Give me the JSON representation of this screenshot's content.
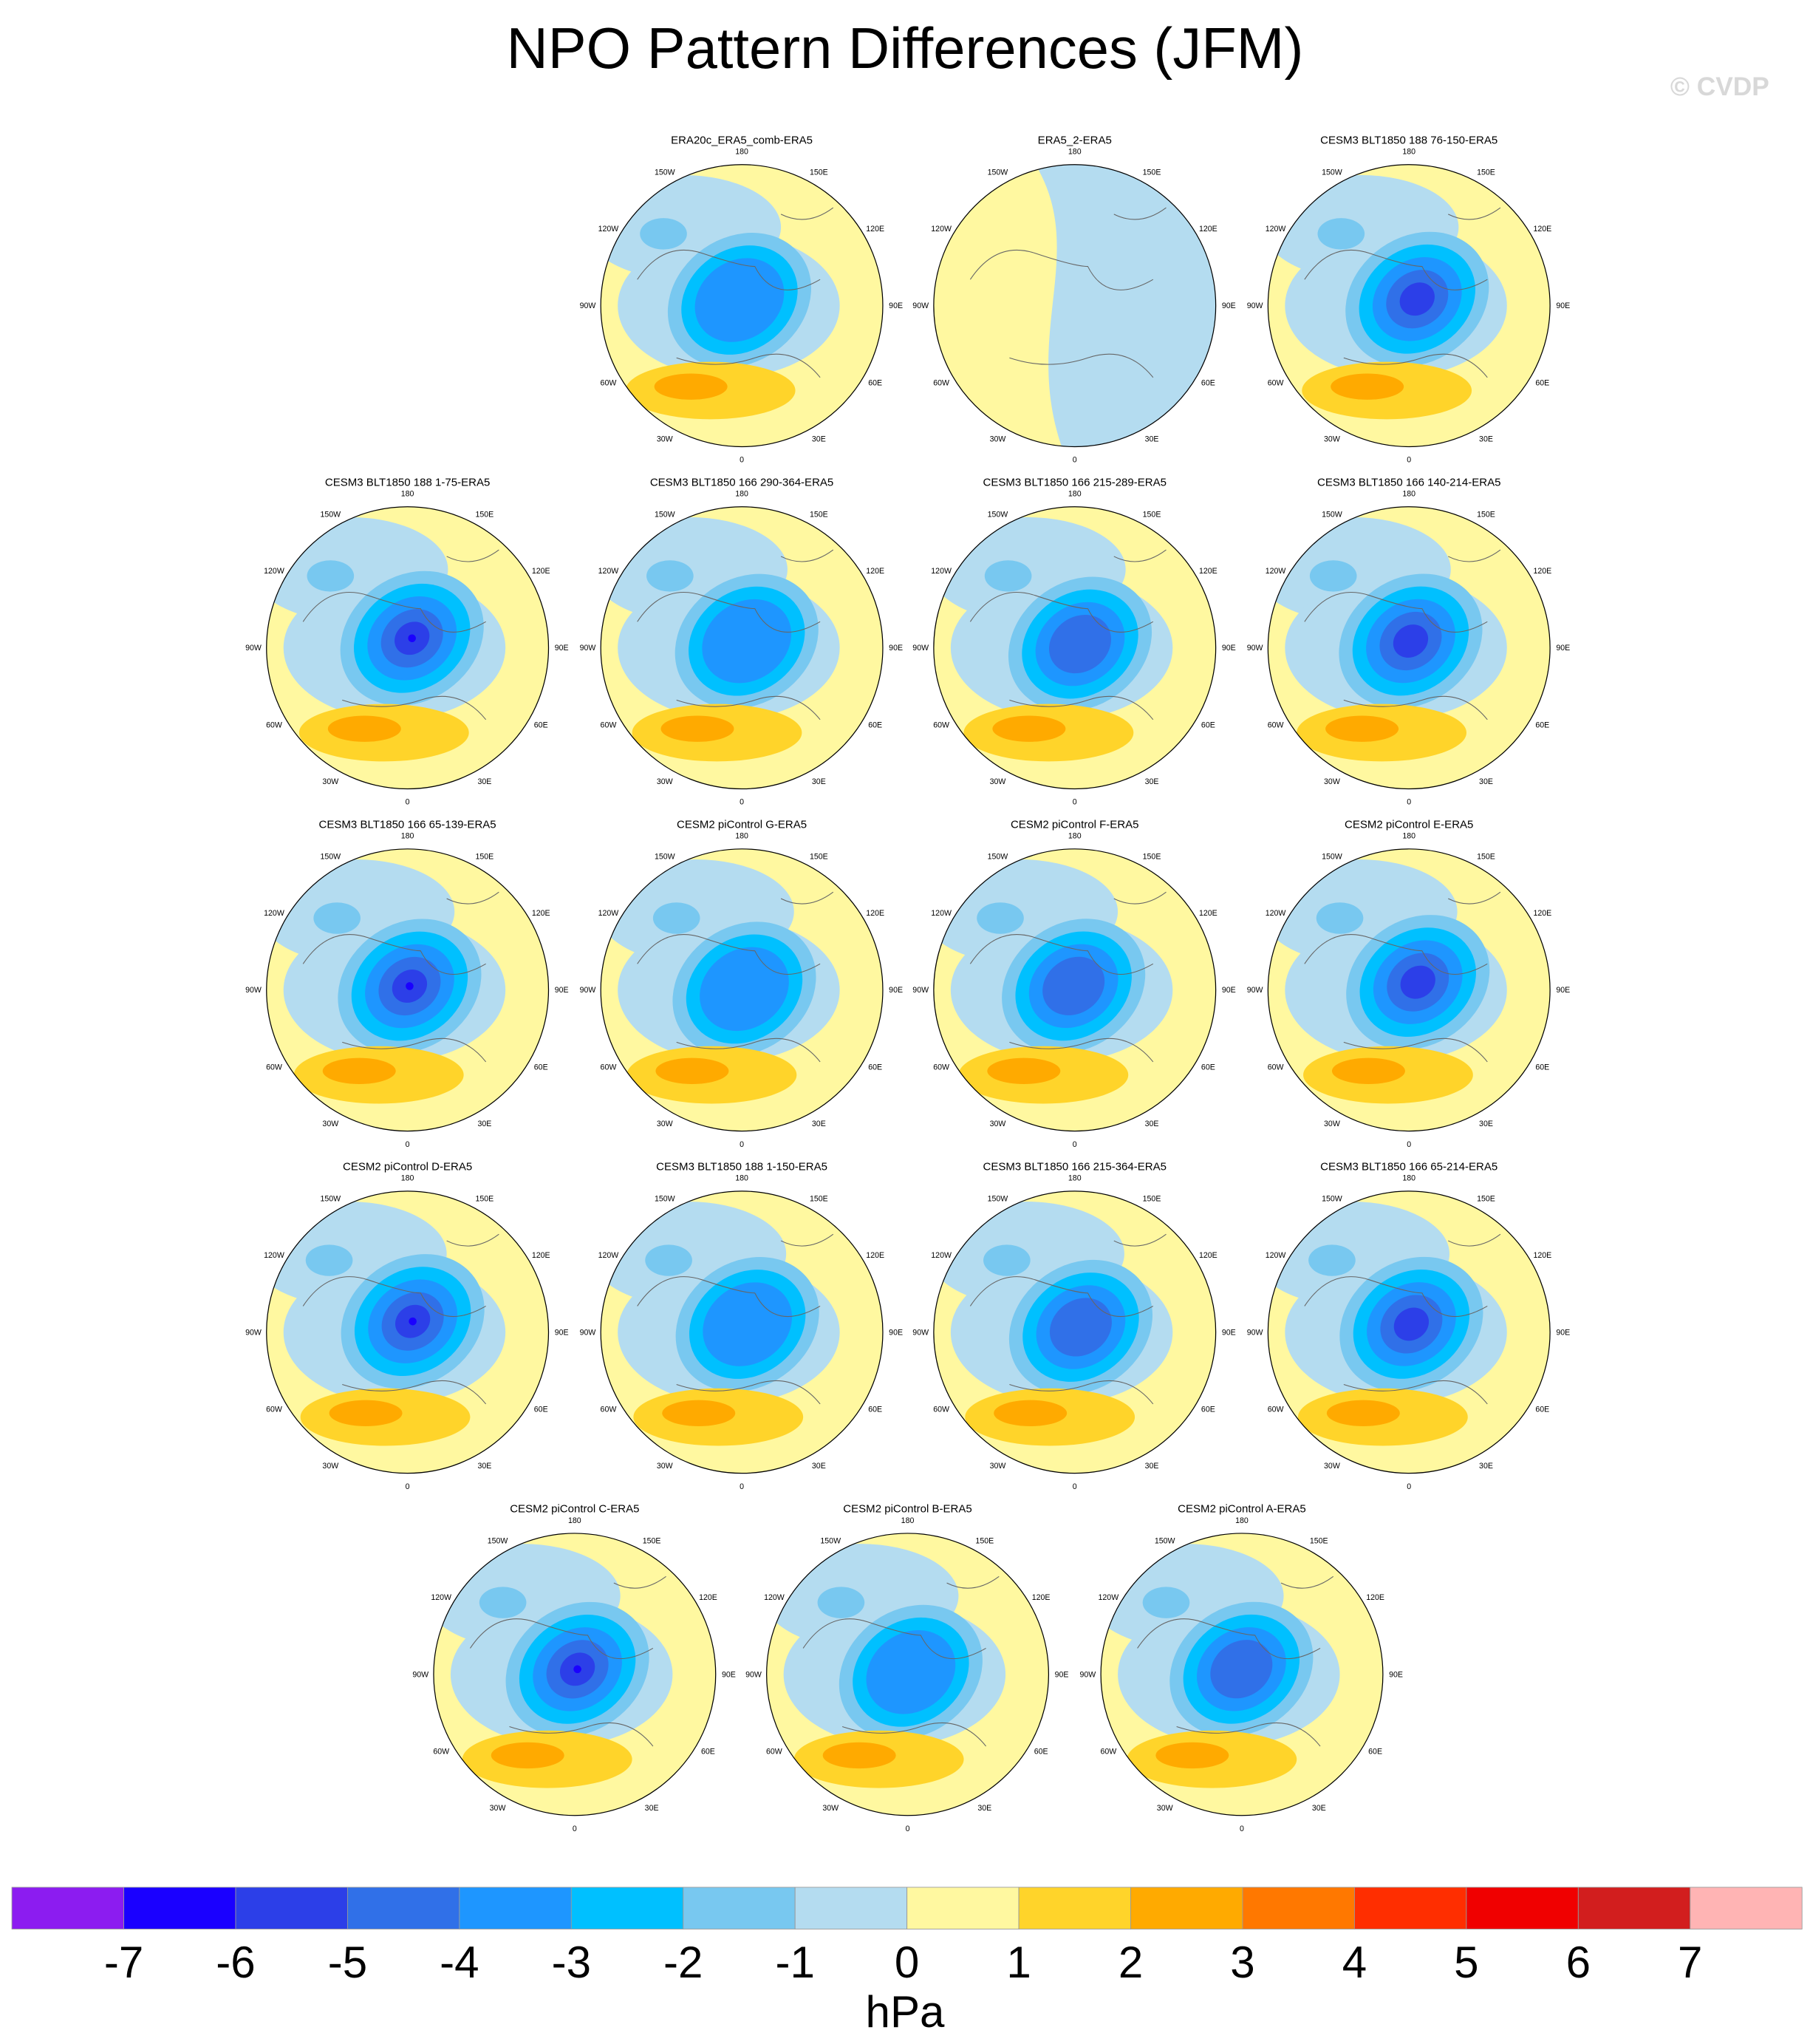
{
  "title": "NPO Pattern Differences (JFM)",
  "watermark": "© CVDP",
  "panels": [
    "ERA20c_ERA5_comb-ERA5",
    "ERA5_2-ERA5",
    "CESM3 BLT1850 188 76-150-ERA5",
    "CESM3 BLT1850 188 1-75-ERA5",
    "CESM3 BLT1850 166 290-364-ERA5",
    "CESM3 BLT1850 166 215-289-ERA5",
    "CESM3 BLT1850 166 140-214-ERA5",
    "CESM3 BLT1850 166 65-139-ERA5",
    "CESM2 piControl G-ERA5",
    "CESM2 piControl F-ERA5",
    "CESM2 piControl E-ERA5",
    "CESM2 piControl D-ERA5",
    "CESM3 BLT1850 188 1-150-ERA5",
    "CESM3 BLT1850 166 215-364-ERA5",
    "CESM3 BLT1850 166 65-214-ERA5",
    "CESM2 piControl C-ERA5",
    "CESM2 piControl B-ERA5",
    "CESM2 piControl A-ERA5"
  ],
  "longitude_labels": [
    "180",
    "150E",
    "120E",
    "90E",
    "60E",
    "30E",
    "0",
    "30W",
    "60W",
    "90W",
    "120W",
    "150W"
  ],
  "colorbar": {
    "levels": [
      -7,
      -6,
      -5,
      -4,
      -3,
      -2,
      -1,
      0,
      1,
      2,
      3,
      4,
      5,
      6,
      7
    ],
    "colors": [
      "#8c1cf0",
      "#1a00ff",
      "#2c3fe8",
      "#3070e8",
      "#1e96ff",
      "#00c0ff",
      "#78c8f0",
      "#b4dcf0",
      "#fff8a0",
      "#ffd42a",
      "#ffaa00",
      "#ff7800",
      "#ff2e00",
      "#f00000",
      "#d21e1e",
      "#ffb4b4"
    ],
    "units": "hPa"
  }
}
